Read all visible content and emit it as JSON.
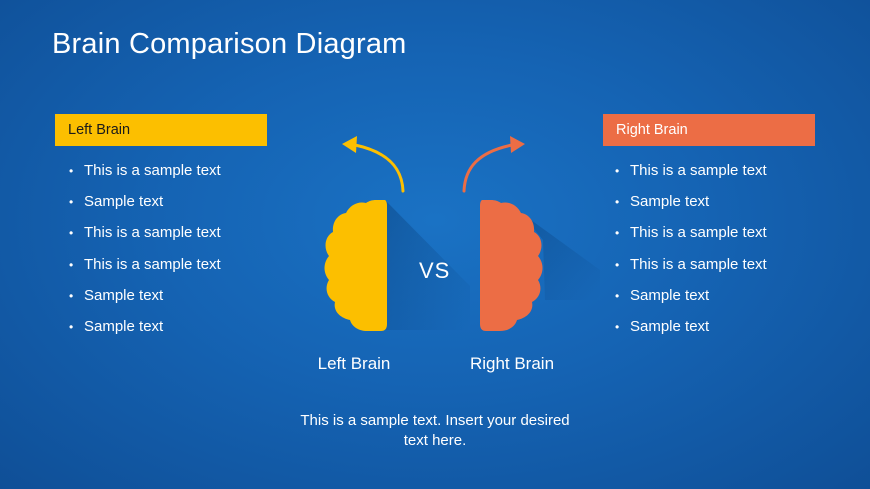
{
  "title": "Brain Comparison Diagram",
  "colors": {
    "background": "#1563b3",
    "left_accent": "#fcbf00",
    "right_accent": "#ec6d45",
    "text": "#ffffff"
  },
  "left_panel": {
    "header": "Left Brain",
    "items": [
      "This is a sample text",
      "Sample text",
      "This is a sample text",
      "This is a sample text",
      "Sample text",
      "Sample text"
    ]
  },
  "right_panel": {
    "header": "Right Brain",
    "items": [
      "This is a sample text",
      "Sample text",
      "This is a sample text",
      "This is a sample text",
      "Sample text",
      "Sample text"
    ]
  },
  "diagram": {
    "left_label": "Left Brain",
    "right_label": "Right Brain",
    "vs_text": "VS",
    "left_icon": "left-brain-hemisphere-icon",
    "right_icon": "right-brain-hemisphere-icon",
    "left_arrow_icon": "curved-arrow-left-icon",
    "right_arrow_icon": "curved-arrow-right-icon"
  },
  "caption": "This is a sample text. Insert your desired text here."
}
